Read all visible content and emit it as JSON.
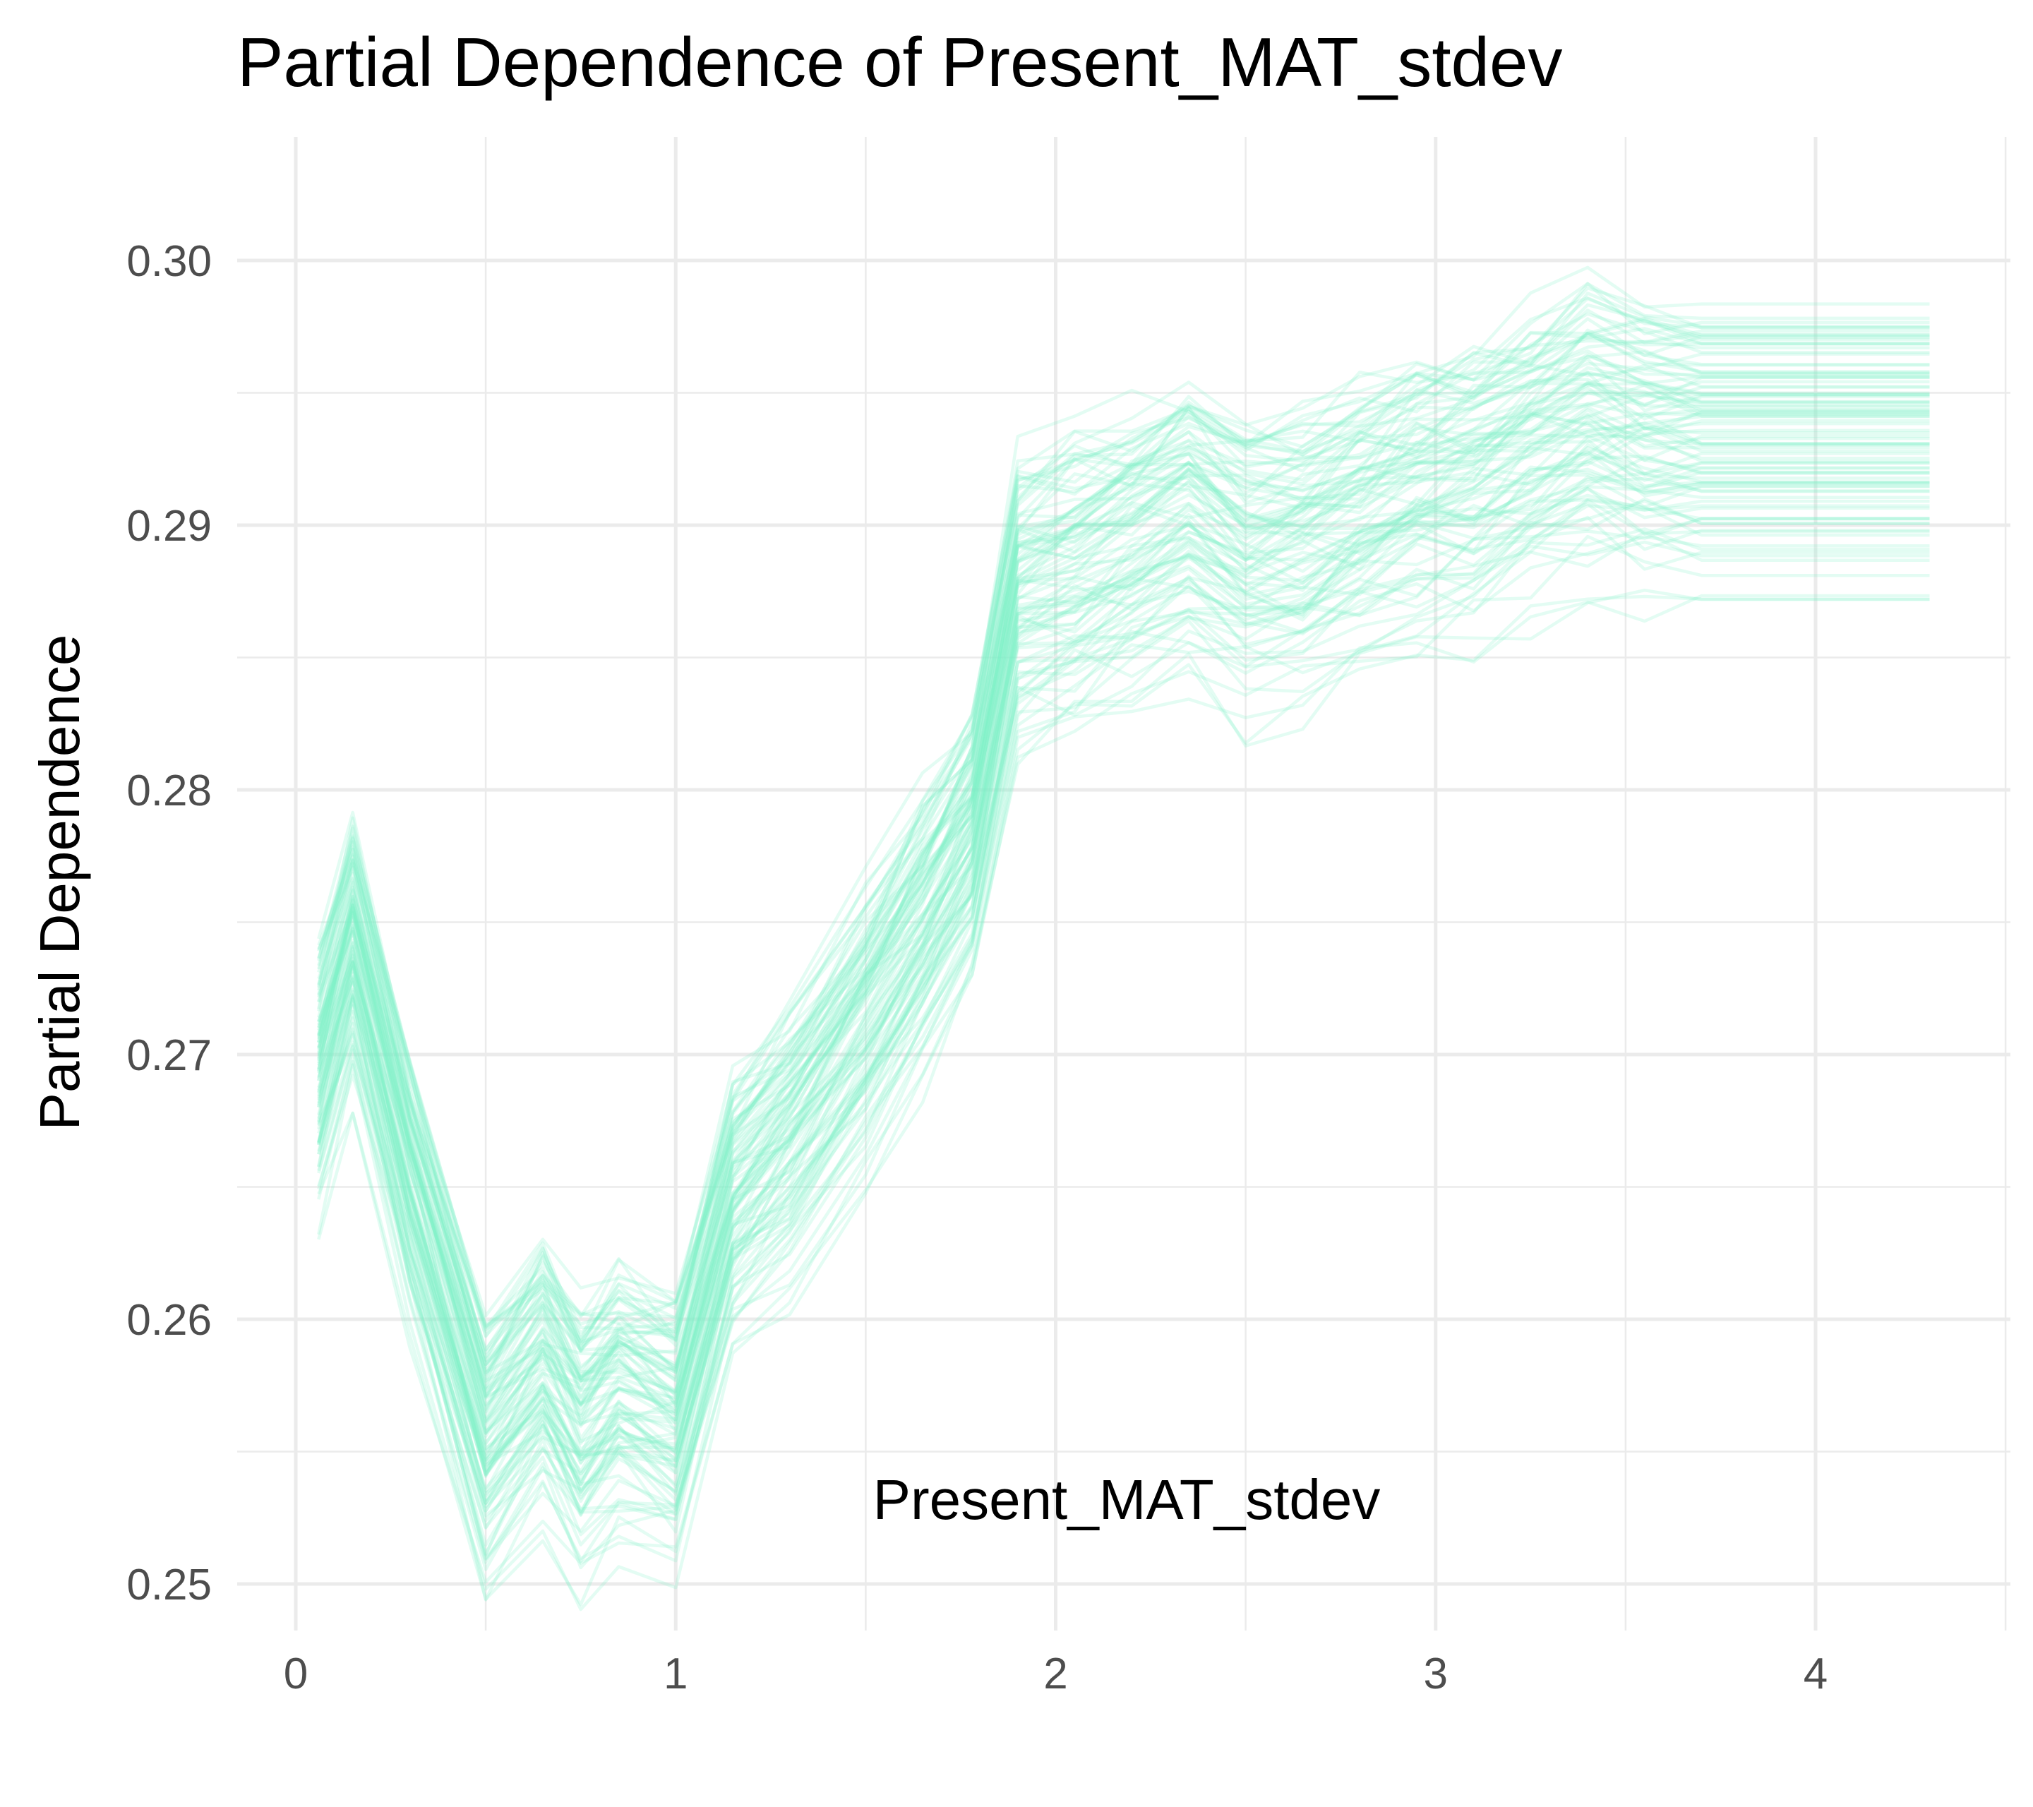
{
  "chart_data": {
    "type": "line",
    "title": "Partial Dependence of Present_MAT_stdev",
    "xlabel": "Present_MAT_stdev",
    "ylabel": "Partial Dependence",
    "xlim": [
      -0.1,
      4.5
    ],
    "ylim": [
      0.2485,
      0.3045
    ],
    "x_ticks": [
      0,
      1,
      2,
      3,
      4
    ],
    "x_tick_labels": [
      "0",
      "1",
      "2",
      "3",
      "4"
    ],
    "y_ticks": [
      0.25,
      0.26,
      0.27,
      0.28,
      0.29,
      0.3
    ],
    "y_tick_labels": [
      "0.25",
      "0.26",
      "0.27",
      "0.28",
      "0.29",
      "0.30"
    ],
    "grid": true,
    "line_color": "#7FF0C8",
    "line_opacity": 0.22,
    "n_curves": 100,
    "x": [
      0.06,
      0.15,
      0.3,
      0.5,
      0.65,
      0.75,
      0.85,
      1.0,
      1.15,
      1.3,
      1.5,
      1.65,
      1.78,
      1.9,
      2.05,
      2.2,
      2.35,
      2.5,
      2.65,
      2.8,
      2.95,
      3.1,
      3.25,
      3.4,
      3.55,
      3.7,
      3.9,
      4.1,
      4.3
    ],
    "mean_curve": [
      0.2695,
      0.2745,
      0.2655,
      0.2555,
      0.2585,
      0.256,
      0.2575,
      0.2565,
      0.2645,
      0.267,
      0.2715,
      0.275,
      0.2785,
      0.2875,
      0.2885,
      0.2895,
      0.2905,
      0.289,
      0.2895,
      0.2905,
      0.2915,
      0.292,
      0.293,
      0.294,
      0.2935,
      0.2935,
      0.2935,
      0.2935,
      0.2935
    ],
    "offsets_high_x": [
      0.0,
      0.0042,
      0.0084
    ],
    "offsets_low_x": [
      0.0,
      0.0036,
      0.0072
    ],
    "spread_left": 0.0045,
    "spread_right": 0.0048
  }
}
